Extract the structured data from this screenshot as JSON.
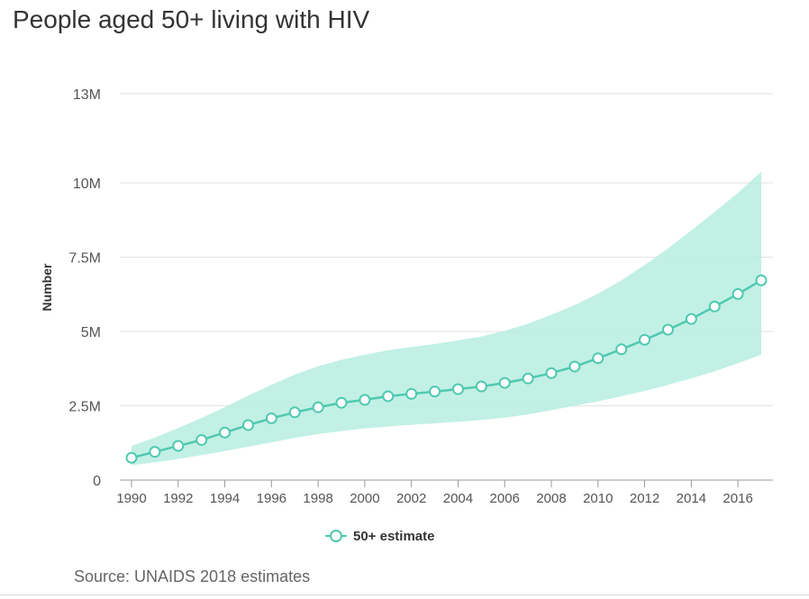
{
  "chart_data": {
    "type": "line",
    "title": "People aged 50+ living with HIV",
    "ylabel": "Number",
    "xlabel": "",
    "ylim": [
      0,
      13000000
    ],
    "y_ticks": [
      {
        "value": 0,
        "label": "0"
      },
      {
        "value": 2500000,
        "label": "2.5M"
      },
      {
        "value": 5000000,
        "label": "5M"
      },
      {
        "value": 7500000,
        "label": "7.5M"
      },
      {
        "value": 10000000,
        "label": "10M"
      },
      {
        "value": 13000000,
        "label": "13M"
      }
    ],
    "x_ticks": [
      "1990",
      "1992",
      "1994",
      "1996",
      "1998",
      "2000",
      "2002",
      "2004",
      "2006",
      "2008",
      "2010",
      "2012",
      "2014",
      "2016"
    ],
    "grid": true,
    "legend_position": "bottom",
    "x": [
      1990,
      1991,
      1992,
      1993,
      1994,
      1995,
      1996,
      1997,
      1998,
      1999,
      2000,
      2001,
      2002,
      2003,
      2004,
      2005,
      2006,
      2007,
      2008,
      2009,
      2010,
      2011,
      2012,
      2013,
      2014,
      2015,
      2016,
      2017
    ],
    "series": [
      {
        "name": "50+ estimate",
        "color": "#4fc9b0",
        "values": [
          750000,
          950000,
          1150000,
          1350000,
          1600000,
          1850000,
          2080000,
          2280000,
          2450000,
          2600000,
          2700000,
          2820000,
          2900000,
          2980000,
          3060000,
          3150000,
          3270000,
          3420000,
          3600000,
          3820000,
          4100000,
          4400000,
          4720000,
          5060000,
          5420000,
          5840000,
          6260000,
          6720000
        ],
        "range_low": [
          500000,
          600000,
          710000,
          840000,
          980000,
          1120000,
          1270000,
          1420000,
          1550000,
          1650000,
          1740000,
          1800000,
          1860000,
          1910000,
          1960000,
          2020000,
          2100000,
          2210000,
          2350000,
          2500000,
          2650000,
          2820000,
          3000000,
          3200000,
          3420000,
          3660000,
          3930000,
          4220000
        ],
        "range_high": [
          1150000,
          1430000,
          1750000,
          2090000,
          2450000,
          2840000,
          3210000,
          3550000,
          3830000,
          4050000,
          4220000,
          4370000,
          4480000,
          4580000,
          4700000,
          4830000,
          5020000,
          5260000,
          5560000,
          5890000,
          6270000,
          6720000,
          7240000,
          7790000,
          8400000,
          9020000,
          9660000,
          10380000
        ]
      }
    ],
    "source": "Source: UNAIDS 2018 estimates"
  }
}
